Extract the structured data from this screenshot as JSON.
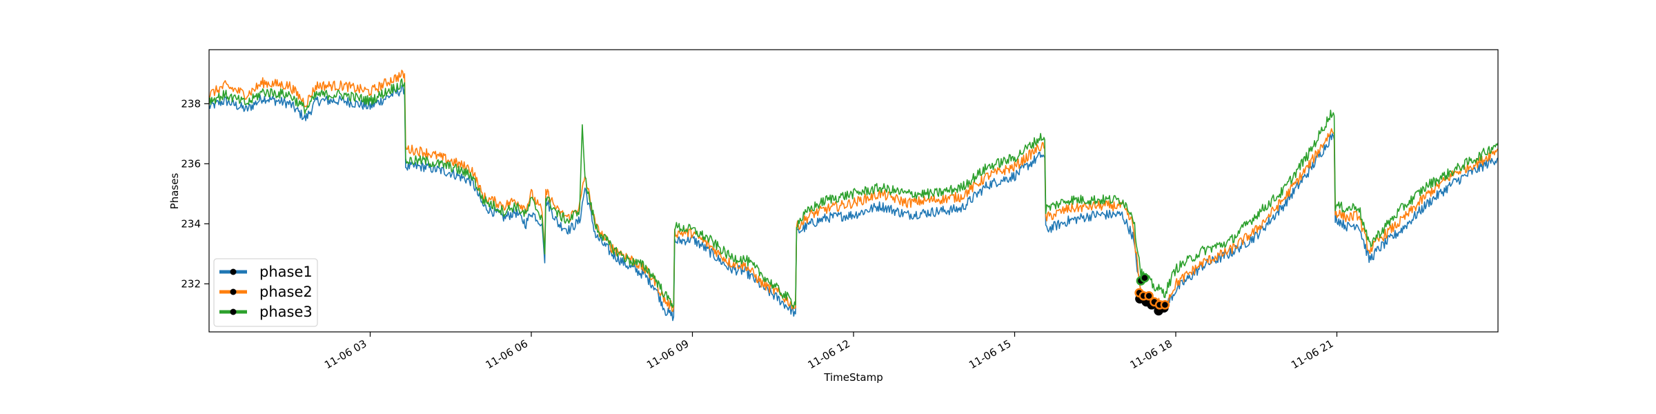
{
  "chart_data": {
    "type": "line",
    "title": "",
    "xlabel": "TimeStamp",
    "ylabel": "Phases",
    "xlim": [
      "11-06 00:00",
      "11-06 24:00"
    ],
    "ylim": [
      230.4,
      239.8
    ],
    "x_ticks": [
      {
        "label": "11-06 03",
        "hour": 3
      },
      {
        "label": "11-06 06",
        "hour": 6
      },
      {
        "label": "11-06 09",
        "hour": 9
      },
      {
        "label": "11-06 12",
        "hour": 12
      },
      {
        "label": "11-06 15",
        "hour": 15
      },
      {
        "label": "11-06 18",
        "hour": 18
      },
      {
        "label": "11-06 21",
        "hour": 21
      }
    ],
    "y_ticks": [
      {
        "label": "232",
        "value": 232
      },
      {
        "label": "234",
        "value": 234
      },
      {
        "label": "236",
        "value": 236
      },
      {
        "label": "238",
        "value": 238
      }
    ],
    "grid": false,
    "legend_placement": "lower-left",
    "x_unit": "hour of 11-06",
    "series": [
      {
        "name": "phase1",
        "color": "#1f77b4",
        "points": [
          [
            0,
            237.9
          ],
          [
            0.3,
            238.1
          ],
          [
            0.7,
            237.8
          ],
          [
            1.0,
            238.2
          ],
          [
            1.5,
            238.0
          ],
          [
            1.8,
            237.5
          ],
          [
            2.0,
            238.1
          ],
          [
            2.5,
            238.1
          ],
          [
            3.0,
            237.9
          ],
          [
            3.4,
            238.3
          ],
          [
            3.64,
            238.5
          ],
          [
            3.66,
            235.9
          ],
          [
            4.0,
            235.9
          ],
          [
            4.5,
            235.7
          ],
          [
            4.9,
            235.4
          ],
          [
            5.1,
            234.6
          ],
          [
            5.5,
            234.2
          ],
          [
            5.7,
            234.4
          ],
          [
            5.9,
            234.0
          ],
          [
            6.0,
            234.4
          ],
          [
            6.2,
            234.0
          ],
          [
            6.25,
            232.7
          ],
          [
            6.27,
            234.8
          ],
          [
            6.5,
            234.0
          ],
          [
            6.7,
            233.8
          ],
          [
            6.9,
            234.1
          ],
          [
            7.0,
            235.2
          ],
          [
            7.2,
            233.6
          ],
          [
            7.5,
            233.0
          ],
          [
            7.8,
            232.6
          ],
          [
            8.1,
            232.3
          ],
          [
            8.3,
            231.9
          ],
          [
            8.5,
            231.1
          ],
          [
            8.65,
            230.9
          ],
          [
            8.67,
            233.4
          ],
          [
            9.0,
            233.5
          ],
          [
            9.3,
            233.1
          ],
          [
            9.7,
            232.5
          ],
          [
            10.0,
            232.4
          ],
          [
            10.3,
            231.9
          ],
          [
            10.6,
            231.5
          ],
          [
            10.8,
            231.2
          ],
          [
            10.92,
            231.0
          ],
          [
            10.94,
            233.7
          ],
          [
            11.2,
            234.0
          ],
          [
            11.5,
            234.2
          ],
          [
            12.0,
            234.3
          ],
          [
            12.5,
            234.6
          ],
          [
            13.0,
            234.3
          ],
          [
            13.5,
            234.4
          ],
          [
            14.0,
            234.5
          ],
          [
            14.5,
            235.3
          ],
          [
            15.0,
            235.6
          ],
          [
            15.5,
            236.3
          ],
          [
            15.56,
            236.2
          ],
          [
            15.58,
            233.8
          ],
          [
            16.0,
            234.1
          ],
          [
            16.5,
            234.3
          ],
          [
            17.0,
            234.3
          ],
          [
            17.2,
            233.6
          ],
          [
            17.35,
            231.7
          ],
          [
            17.6,
            231.3
          ],
          [
            17.8,
            231.2
          ],
          [
            18.0,
            231.8
          ],
          [
            18.5,
            232.6
          ],
          [
            19.0,
            233.0
          ],
          [
            19.5,
            233.6
          ],
          [
            20.0,
            234.6
          ],
          [
            20.5,
            235.8
          ],
          [
            20.9,
            236.9
          ],
          [
            20.95,
            236.8
          ],
          [
            20.97,
            234.2
          ],
          [
            21.2,
            233.9
          ],
          [
            21.4,
            234.0
          ],
          [
            21.6,
            232.8
          ],
          [
            21.8,
            233.2
          ],
          [
            22.2,
            233.8
          ],
          [
            22.7,
            234.7
          ],
          [
            23.2,
            235.4
          ],
          [
            23.7,
            235.9
          ],
          [
            24.0,
            236.2
          ]
        ]
      },
      {
        "name": "phase2",
        "color": "#ff7f0e",
        "points": [
          [
            0,
            238.3
          ],
          [
            0.3,
            238.6
          ],
          [
            0.7,
            238.3
          ],
          [
            1.0,
            238.7
          ],
          [
            1.5,
            238.6
          ],
          [
            1.8,
            238.0
          ],
          [
            2.0,
            238.6
          ],
          [
            2.5,
            238.6
          ],
          [
            3.0,
            238.4
          ],
          [
            3.4,
            238.8
          ],
          [
            3.64,
            239.0
          ],
          [
            3.66,
            236.5
          ],
          [
            4.0,
            236.4
          ],
          [
            4.5,
            236.1
          ],
          [
            4.9,
            235.8
          ],
          [
            5.1,
            234.9
          ],
          [
            5.5,
            234.6
          ],
          [
            5.7,
            234.8
          ],
          [
            5.9,
            234.5
          ],
          [
            6.0,
            235.0
          ],
          [
            6.2,
            234.4
          ],
          [
            6.25,
            233.0
          ],
          [
            6.27,
            235.1
          ],
          [
            6.5,
            234.4
          ],
          [
            6.7,
            234.2
          ],
          [
            6.9,
            234.6
          ],
          [
            7.0,
            235.6
          ],
          [
            7.2,
            233.9
          ],
          [
            7.5,
            233.2
          ],
          [
            7.8,
            232.9
          ],
          [
            8.1,
            232.5
          ],
          [
            8.3,
            232.1
          ],
          [
            8.5,
            231.4
          ],
          [
            8.65,
            231.2
          ],
          [
            8.67,
            233.7
          ],
          [
            9.0,
            233.7
          ],
          [
            9.3,
            233.3
          ],
          [
            9.7,
            232.7
          ],
          [
            10.0,
            232.6
          ],
          [
            10.3,
            232.0
          ],
          [
            10.6,
            231.7
          ],
          [
            10.8,
            231.4
          ],
          [
            10.92,
            231.2
          ],
          [
            10.94,
            233.9
          ],
          [
            11.2,
            234.3
          ],
          [
            11.5,
            234.5
          ],
          [
            12.0,
            234.7
          ],
          [
            12.5,
            235.0
          ],
          [
            13.0,
            234.7
          ],
          [
            13.5,
            234.8
          ],
          [
            14.0,
            234.9
          ],
          [
            14.5,
            235.6
          ],
          [
            15.0,
            235.9
          ],
          [
            15.5,
            236.6
          ],
          [
            15.56,
            236.5
          ],
          [
            15.58,
            234.2
          ],
          [
            16.0,
            234.5
          ],
          [
            16.5,
            234.6
          ],
          [
            17.0,
            234.6
          ],
          [
            17.2,
            234.0
          ],
          [
            17.35,
            231.6
          ],
          [
            17.6,
            231.4
          ],
          [
            17.8,
            231.3
          ],
          [
            18.0,
            232.0
          ],
          [
            18.5,
            232.7
          ],
          [
            19.0,
            233.1
          ],
          [
            19.5,
            233.8
          ],
          [
            20.0,
            234.8
          ],
          [
            20.5,
            236.0
          ],
          [
            20.9,
            237.1
          ],
          [
            20.95,
            237.0
          ],
          [
            20.97,
            234.4
          ],
          [
            21.2,
            234.2
          ],
          [
            21.4,
            234.3
          ],
          [
            21.6,
            233.1
          ],
          [
            21.8,
            233.5
          ],
          [
            22.2,
            234.1
          ],
          [
            22.7,
            235.0
          ],
          [
            23.2,
            235.7
          ],
          [
            23.7,
            236.1
          ],
          [
            24.0,
            236.5
          ]
        ]
      },
      {
        "name": "phase3",
        "color": "#2ca02c",
        "points": [
          [
            0,
            238.1
          ],
          [
            0.3,
            238.3
          ],
          [
            0.7,
            238.0
          ],
          [
            1.0,
            238.4
          ],
          [
            1.5,
            238.3
          ],
          [
            1.8,
            237.8
          ],
          [
            2.0,
            238.3
          ],
          [
            2.5,
            238.3
          ],
          [
            3.0,
            238.1
          ],
          [
            3.4,
            238.5
          ],
          [
            3.64,
            238.7
          ],
          [
            3.66,
            236.1
          ],
          [
            4.0,
            236.1
          ],
          [
            4.5,
            235.9
          ],
          [
            4.9,
            235.6
          ],
          [
            5.1,
            234.8
          ],
          [
            5.5,
            234.4
          ],
          [
            5.7,
            234.6
          ],
          [
            5.9,
            234.3
          ],
          [
            6.0,
            234.8
          ],
          [
            6.2,
            234.2
          ],
          [
            6.25,
            233.0
          ],
          [
            6.27,
            234.9
          ],
          [
            6.5,
            234.3
          ],
          [
            6.7,
            234.1
          ],
          [
            6.9,
            234.5
          ],
          [
            6.95,
            237.3
          ],
          [
            7.0,
            235.5
          ],
          [
            7.2,
            233.9
          ],
          [
            7.5,
            233.2
          ],
          [
            7.8,
            232.8
          ],
          [
            8.1,
            232.6
          ],
          [
            8.3,
            232.2
          ],
          [
            8.5,
            231.6
          ],
          [
            8.65,
            231.3
          ],
          [
            8.67,
            233.9
          ],
          [
            9.0,
            233.8
          ],
          [
            9.3,
            233.5
          ],
          [
            9.7,
            232.9
          ],
          [
            10.0,
            232.8
          ],
          [
            10.3,
            232.3
          ],
          [
            10.6,
            231.8
          ],
          [
            10.8,
            231.5
          ],
          [
            10.92,
            231.3
          ],
          [
            10.94,
            234.0
          ],
          [
            11.2,
            234.5
          ],
          [
            11.5,
            234.8
          ],
          [
            12.0,
            235.0
          ],
          [
            12.5,
            235.2
          ],
          [
            13.0,
            235.0
          ],
          [
            13.5,
            235.0
          ],
          [
            14.0,
            235.2
          ],
          [
            14.5,
            235.9
          ],
          [
            15.0,
            236.2
          ],
          [
            15.5,
            236.9
          ],
          [
            15.56,
            236.8
          ],
          [
            15.58,
            234.5
          ],
          [
            16.0,
            234.8
          ],
          [
            16.5,
            234.8
          ],
          [
            17.0,
            234.8
          ],
          [
            17.2,
            234.3
          ],
          [
            17.35,
            232.4
          ],
          [
            17.6,
            231.9
          ],
          [
            17.8,
            231.7
          ],
          [
            18.0,
            232.5
          ],
          [
            18.5,
            233.1
          ],
          [
            19.0,
            233.4
          ],
          [
            19.5,
            234.3
          ],
          [
            20.0,
            235.1
          ],
          [
            20.5,
            236.4
          ],
          [
            20.9,
            237.7
          ],
          [
            20.95,
            237.6
          ],
          [
            20.97,
            234.6
          ],
          [
            21.2,
            234.5
          ],
          [
            21.4,
            234.6
          ],
          [
            21.6,
            233.3
          ],
          [
            21.8,
            233.7
          ],
          [
            22.2,
            234.5
          ],
          [
            22.7,
            235.3
          ],
          [
            23.2,
            235.8
          ],
          [
            23.7,
            236.3
          ],
          [
            24.0,
            236.7
          ]
        ]
      }
    ],
    "markers": [
      {
        "series": "phase1",
        "color": "#000000",
        "points": [
          [
            17.33,
            231.5
          ],
          [
            17.45,
            231.4
          ],
          [
            17.55,
            231.3
          ],
          [
            17.68,
            231.1
          ],
          [
            17.78,
            231.2
          ]
        ]
      },
      {
        "series": "phase2",
        "color": "#ff7f0e",
        "points": [
          [
            17.32,
            231.7
          ],
          [
            17.4,
            231.6
          ],
          [
            17.5,
            231.6
          ],
          [
            17.6,
            231.4
          ],
          [
            17.7,
            231.3
          ],
          [
            17.8,
            231.3
          ]
        ]
      },
      {
        "series": "phase3",
        "color": "#2ca02c",
        "points": [
          [
            17.35,
            232.1
          ],
          [
            17.42,
            232.2
          ]
        ]
      }
    ]
  }
}
